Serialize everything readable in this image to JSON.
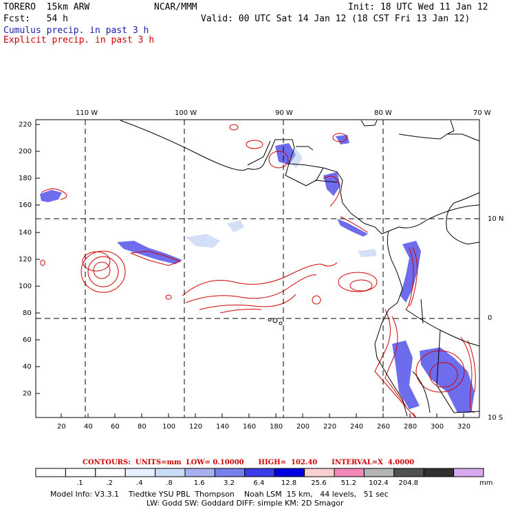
{
  "header": {
    "model": "TORERO  15km ARW",
    "org": "NCAR/MMM",
    "init": "Init: 18 UTC Wed 11 Jan 12",
    "fcst": "Fcst:   54 h",
    "valid": "Valid: 00 UTC Sat 14 Jan 12 (18 CST Fri 13 Jan 12)",
    "legend_cumulus": "Cumulus precip. in past 3 h",
    "legend_explicit": "Explicit precip. in past 3 h"
  },
  "axes": {
    "top_lon_labels": [
      "110 W",
      "100 W",
      "90 W",
      "80 W",
      "70 W"
    ],
    "right_lat_labels": [
      "10 N",
      "0",
      "10 S"
    ],
    "left_ticks": [
      "220",
      "200",
      "180",
      "160",
      "140",
      "120",
      "100",
      "80",
      "60",
      "40",
      "20"
    ],
    "bottom_ticks": [
      "20",
      "40",
      "60",
      "80",
      "100",
      "120",
      "140",
      "160",
      "180",
      "200",
      "220",
      "240",
      "260",
      "280",
      "300",
      "320"
    ]
  },
  "contour_info": "CONTOURS:  UNITS=mm  LOW= 0.10000      HIGH=  102.40      INTERVAL=X  4.0000",
  "colorbar": {
    "labels": [
      ".1",
      ".2",
      ".4",
      ".8",
      "1.6",
      "3.2",
      "6.4",
      "12.8",
      "25.6",
      "51.2",
      "102.4",
      "204.8"
    ],
    "unit": "mm",
    "colors": [
      "#ffffff",
      "#ffffff",
      "#ffffff",
      "#e6f0ff",
      "#c8ddf8",
      "#a8b0f0",
      "#7880ec",
      "#3c3ce8",
      "#0000e0",
      "#f8d0d0",
      "#f088b8",
      "#b4b4b4",
      "#505050",
      "#303030",
      "#d8a8f0"
    ]
  },
  "footer": {
    "line1": "Model Info: V3.3.1    Tiedtke YSU PBL  Thompson    Noah LSM  15 km,   44 levels,   51 sec",
    "line2": "LW: Godd SW: Goddard DIFF: simple KM: 2D Smagor"
  }
}
